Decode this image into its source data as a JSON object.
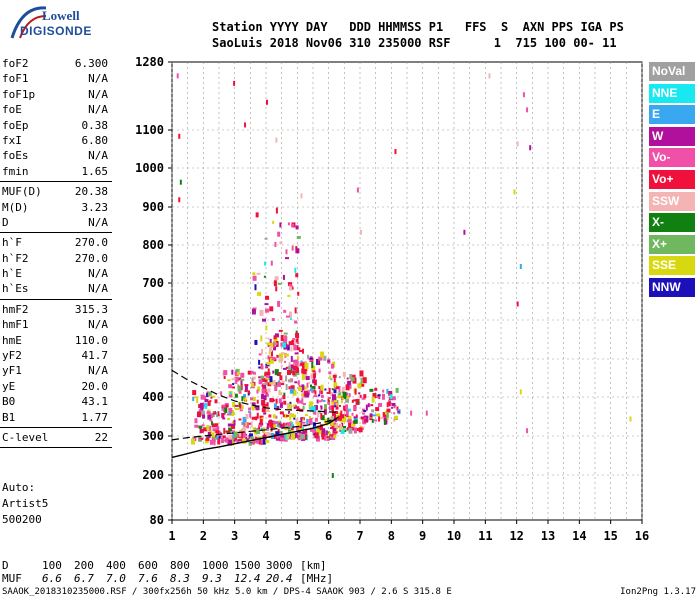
{
  "logo": {
    "line1": "Lowell",
    "line2": "DIGISONDE"
  },
  "header": {
    "labels": "Station YYYY DAY   DDD HHMMSS P1   FFS  S  AXN PPS IGA PS",
    "values": "SaoLuis 2018 Nov06 310 235000 RSF      1  715 100 00- 11"
  },
  "params": [
    {
      "name": "foF2",
      "value": "6.300"
    },
    {
      "name": "foF1",
      "value": "N/A"
    },
    {
      "name": "foF1p",
      "value": "N/A"
    },
    {
      "name": "foE",
      "value": "N/A"
    },
    {
      "name": "foEp",
      "value": "0.38"
    },
    {
      "name": "fxI",
      "value": "6.80"
    },
    {
      "name": "foEs",
      "value": "N/A"
    },
    {
      "name": "fmin",
      "value": "1.65"
    },
    {
      "sep": true
    },
    {
      "name": "MUF(D)",
      "value": "20.38"
    },
    {
      "name": "M(D)",
      "value": "3.23"
    },
    {
      "name": "D",
      "value": "N/A"
    },
    {
      "sep": true
    },
    {
      "name": "h`F",
      "value": "270.0"
    },
    {
      "name": "h`F2",
      "value": "270.0"
    },
    {
      "name": "h`E",
      "value": "N/A"
    },
    {
      "name": "h`Es",
      "value": "N/A"
    },
    {
      "sep": true
    },
    {
      "name": "hmF2",
      "value": "315.3"
    },
    {
      "name": "hmF1",
      "value": "N/A"
    },
    {
      "name": "hmE",
      "value": "110.0"
    },
    {
      "name": "yF2",
      "value": "41.7"
    },
    {
      "name": "yF1",
      "value": "N/A"
    },
    {
      "name": "yE",
      "value": "20.0"
    },
    {
      "name": "B0",
      "value": "43.1"
    },
    {
      "name": "B1",
      "value": "1.77"
    },
    {
      "sep": true
    },
    {
      "name": "C-level",
      "value": "22"
    },
    {
      "sep": true
    }
  ],
  "auto": {
    "line1": "Auto:",
    "line2": "Artist5",
    "line3": "500200"
  },
  "legend": [
    {
      "label": "NoVal",
      "color": "#a0a0a0"
    },
    {
      "label": "NNE",
      "color": "#18e8f0"
    },
    {
      "label": "E",
      "color": "#3aa8f0"
    },
    {
      "label": "W",
      "color": "#b0109c"
    },
    {
      "label": "Vo-",
      "color": "#f050a8"
    },
    {
      "label": "Vo+",
      "color": "#f0103c"
    },
    {
      "label": "SSW",
      "color": "#f4b4b4"
    },
    {
      "label": "X-",
      "color": "#108010"
    },
    {
      "label": "X+",
      "color": "#70b860"
    },
    {
      "label": "SSE",
      "color": "#d8d810"
    },
    {
      "label": "NNW",
      "color": "#1c10b8"
    }
  ],
  "muf_table": {
    "d_label": "D",
    "d_values": [
      "100",
      "200",
      "400",
      "600",
      "800",
      "1000",
      "1500",
      "3000"
    ],
    "d_unit": "[km]",
    "muf_label": "MUF",
    "muf_values": [
      "6.6",
      "6.7",
      "7.0",
      "7.6",
      "8.3",
      "9.3",
      "12.4",
      "20.4"
    ],
    "muf_unit": "[MHz]"
  },
  "footer": {
    "left": "SAAOK_2018310235000.RSF / 300fx256h 50 kHz 5.0 km / DPS-4 SAAOK 903 / 2.6 S 315.8 E",
    "right": "Ion2Png 1.3.17"
  },
  "chart_data": {
    "type": "scatter",
    "xlabel": "",
    "ylabel": "",
    "xlim": [
      1,
      16
    ],
    "xticks": [
      1,
      2,
      3,
      4,
      5,
      6,
      7,
      8,
      9,
      10,
      11,
      12,
      13,
      14,
      15,
      16
    ],
    "yticks": [
      80,
      200,
      300,
      400,
      500,
      600,
      700,
      800,
      900,
      1000,
      1100,
      1280
    ],
    "ylim": [
      80,
      1280
    ],
    "grid": true,
    "x_grid_step": 0.5,
    "legend_position": "right",
    "trace_upper": [
      [
        1.0,
        470
      ],
      [
        1.5,
        445
      ],
      [
        2.0,
        425
      ],
      [
        2.5,
        405
      ],
      [
        3.0,
        390
      ],
      [
        3.5,
        380
      ],
      [
        4.0,
        372
      ],
      [
        4.5,
        368
      ],
      [
        5.0,
        366
      ],
      [
        5.5,
        364
      ],
      [
        6.0,
        362
      ],
      [
        6.3,
        360
      ]
    ],
    "trace_lower": [
      [
        1.0,
        290
      ],
      [
        1.5,
        296
      ],
      [
        2.0,
        300
      ],
      [
        2.5,
        304
      ],
      [
        3.0,
        308
      ],
      [
        3.5,
        312
      ],
      [
        4.0,
        316
      ],
      [
        4.5,
        320
      ],
      [
        5.0,
        324
      ],
      [
        5.5,
        330
      ],
      [
        6.0,
        338
      ],
      [
        6.2,
        345
      ]
    ],
    "profile_curve": [
      [
        1.0,
        245
      ],
      [
        1.5,
        255
      ],
      [
        2.0,
        265
      ],
      [
        2.5,
        272
      ],
      [
        3.0,
        280
      ],
      [
        3.5,
        288
      ],
      [
        4.0,
        296
      ],
      [
        4.5,
        304
      ],
      [
        5.0,
        312
      ],
      [
        5.5,
        320
      ],
      [
        6.0,
        332
      ],
      [
        6.3,
        348
      ]
    ],
    "clusters": [
      {
        "x": [
          1.6,
          2.6
        ],
        "y": [
          290,
          420
        ],
        "n": 90
      },
      {
        "x": [
          2.6,
          4.0
        ],
        "y": [
          290,
          480
        ],
        "n": 220
      },
      {
        "x": [
          4.0,
          5.2
        ],
        "y": [
          300,
          560
        ],
        "n": 260
      },
      {
        "x": [
          5.2,
          6.2
        ],
        "y": [
          300,
          520
        ],
        "n": 170
      },
      {
        "x": [
          6.1,
          7.1
        ],
        "y": [
          320,
          470
        ],
        "n": 120
      },
      {
        "x": [
          7.1,
          8.2
        ],
        "y": [
          340,
          430
        ],
        "n": 60
      },
      {
        "x": [
          3.5,
          5.0
        ],
        "y": [
          480,
          900
        ],
        "n": 90
      }
    ],
    "outliers": [
      [
        1.15,
        1250
      ],
      [
        1.2,
        1090
      ],
      [
        1.25,
        970
      ],
      [
        1.2,
        925
      ],
      [
        2.95,
        1230
      ],
      [
        3.3,
        1120
      ],
      [
        4.0,
        1180
      ],
      [
        4.3,
        1080
      ],
      [
        5.1,
        935
      ],
      [
        6.9,
        950
      ],
      [
        7.0,
        840
      ],
      [
        8.1,
        1050
      ],
      [
        10.3,
        840
      ],
      [
        11.1,
        1250
      ],
      [
        11.9,
        945
      ],
      [
        12.0,
        1070
      ],
      [
        12.2,
        1200
      ],
      [
        12.3,
        1160
      ],
      [
        12.4,
        1060
      ],
      [
        12.1,
        750
      ],
      [
        12.0,
        650
      ],
      [
        12.1,
        420
      ],
      [
        12.3,
        320
      ],
      [
        15.6,
        350
      ],
      [
        9.1,
        365
      ],
      [
        8.6,
        365
      ],
      [
        6.1,
        205
      ]
    ]
  }
}
